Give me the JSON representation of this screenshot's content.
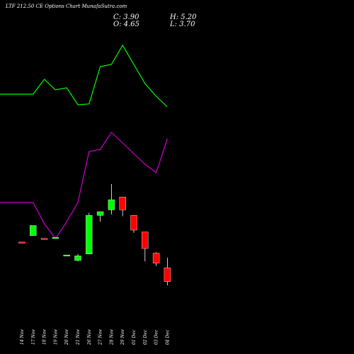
{
  "header": {
    "title": "LTF 212.50  CE Options  Chart MunafaSutra.com",
    "close_label": "C: 3.90",
    "open_label": "O: 4.65",
    "high_label": "H: 5.20",
    "low_label": "L: 3.70"
  },
  "chart_data": {
    "type": "candlestick",
    "categories": [
      "14 Nov",
      "17 Nov",
      "18 Nov",
      "19 Nov",
      "20 Nov",
      "21 Nov",
      "26 Nov",
      "27 Nov",
      "28 Nov",
      "29 Nov",
      "01 Dec",
      "02 Dec",
      "03 Dec",
      "04 Dec"
    ],
    "candles": [
      {
        "open": 6.05,
        "high": 6.05,
        "low": 6.0,
        "close": 6.0
      },
      {
        "open": 6.4,
        "high": 6.95,
        "low": 6.4,
        "close": 6.95
      },
      {
        "open": 6.25,
        "high": 6.25,
        "low": 6.2,
        "close": 6.2
      },
      {
        "open": 6.3,
        "high": 6.3,
        "low": 6.3,
        "close": 6.3
      },
      {
        "open": 5.35,
        "high": 5.35,
        "low": 5.35,
        "close": 5.35
      },
      {
        "open": 5.05,
        "high": 5.4,
        "low": 5.0,
        "close": 5.3
      },
      {
        "open": 5.4,
        "high": 7.65,
        "low": 5.4,
        "close": 7.5
      },
      {
        "open": 7.5,
        "high": 7.7,
        "low": 7.15,
        "close": 7.7
      },
      {
        "open": 7.8,
        "high": 9.2,
        "low": 7.55,
        "close": 8.35
      },
      {
        "open": 8.5,
        "high": 8.5,
        "low": 7.45,
        "close": 7.8
      },
      {
        "open": 7.5,
        "high": 7.5,
        "low": 6.55,
        "close": 6.7
      },
      {
        "open": 6.6,
        "high": 6.6,
        "low": 5.0,
        "close": 5.7
      },
      {
        "open": 5.45,
        "high": 5.5,
        "low": 4.75,
        "close": 4.9
      },
      {
        "open": 4.65,
        "high": 5.2,
        "low": 3.7,
        "close": 3.9
      }
    ],
    "upper_line": [
      15.2,
      15.2,
      15.55,
      15.3,
      15.35,
      14.95,
      14.97,
      15.85,
      15.9,
      16.35,
      15.9,
      15.45,
      15.15,
      14.9
    ],
    "lower_line": [
      12.65,
      12.65,
      12.15,
      11.8,
      12.2,
      12.65,
      13.85,
      13.9,
      14.3,
      14.05,
      13.8,
      13.55,
      13.35,
      14.15
    ],
    "colors": {
      "up": "#00ff00",
      "down": "#ff0000",
      "upper_line": "#00ff00",
      "lower_line": "#cc00cc",
      "background": "#000000",
      "wick": "#ffffff"
    }
  }
}
